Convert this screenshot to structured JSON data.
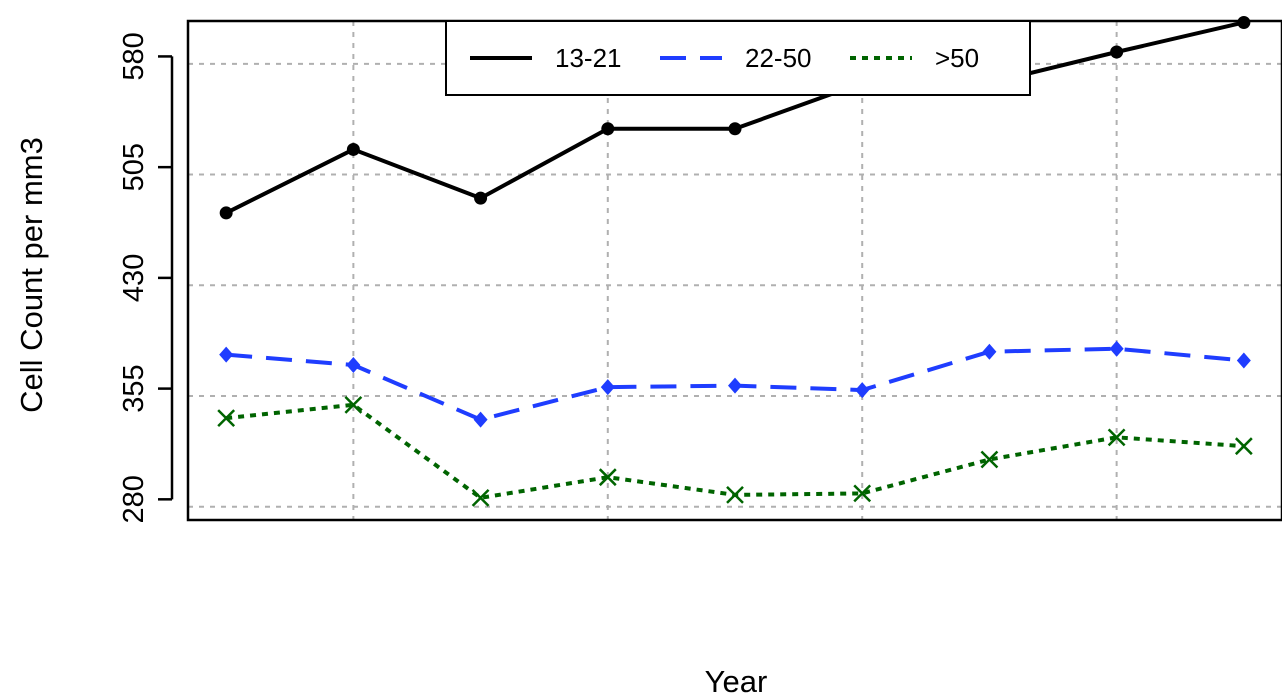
{
  "chart_data": {
    "type": "line",
    "title": "",
    "xlabel": "Year",
    "ylabel": "Cell Count per mm3",
    "x": [
      1,
      2,
      3,
      4,
      5,
      6,
      7,
      8,
      9
    ],
    "xlim": [
      0.7,
      9.3
    ],
    "ylim": [
      266,
      604
    ],
    "y_ticks": [
      280,
      355,
      430,
      505,
      580
    ],
    "y_tick_labels": [
      "280",
      "355",
      "430",
      "505",
      "580"
    ],
    "grid": true,
    "legend_position": "top",
    "series": [
      {
        "name": "13-21",
        "color": "#000000",
        "line_style": "solid",
        "marker": "circle",
        "values": [
          474,
          517,
          484,
          531,
          531,
          562,
          562,
          583,
          603
        ]
      },
      {
        "name": "22-50",
        "color": "#1f3dff",
        "line_style": "dashed",
        "marker": "diamond",
        "values": [
          378,
          371,
          334,
          356,
          357,
          354,
          380,
          382,
          374
        ]
      },
      {
        "name": ">50",
        "color": "#006400",
        "line_style": "dotted",
        "marker": "x",
        "values": [
          335,
          344,
          281,
          295,
          283,
          284,
          307,
          322,
          316
        ]
      }
    ]
  }
}
